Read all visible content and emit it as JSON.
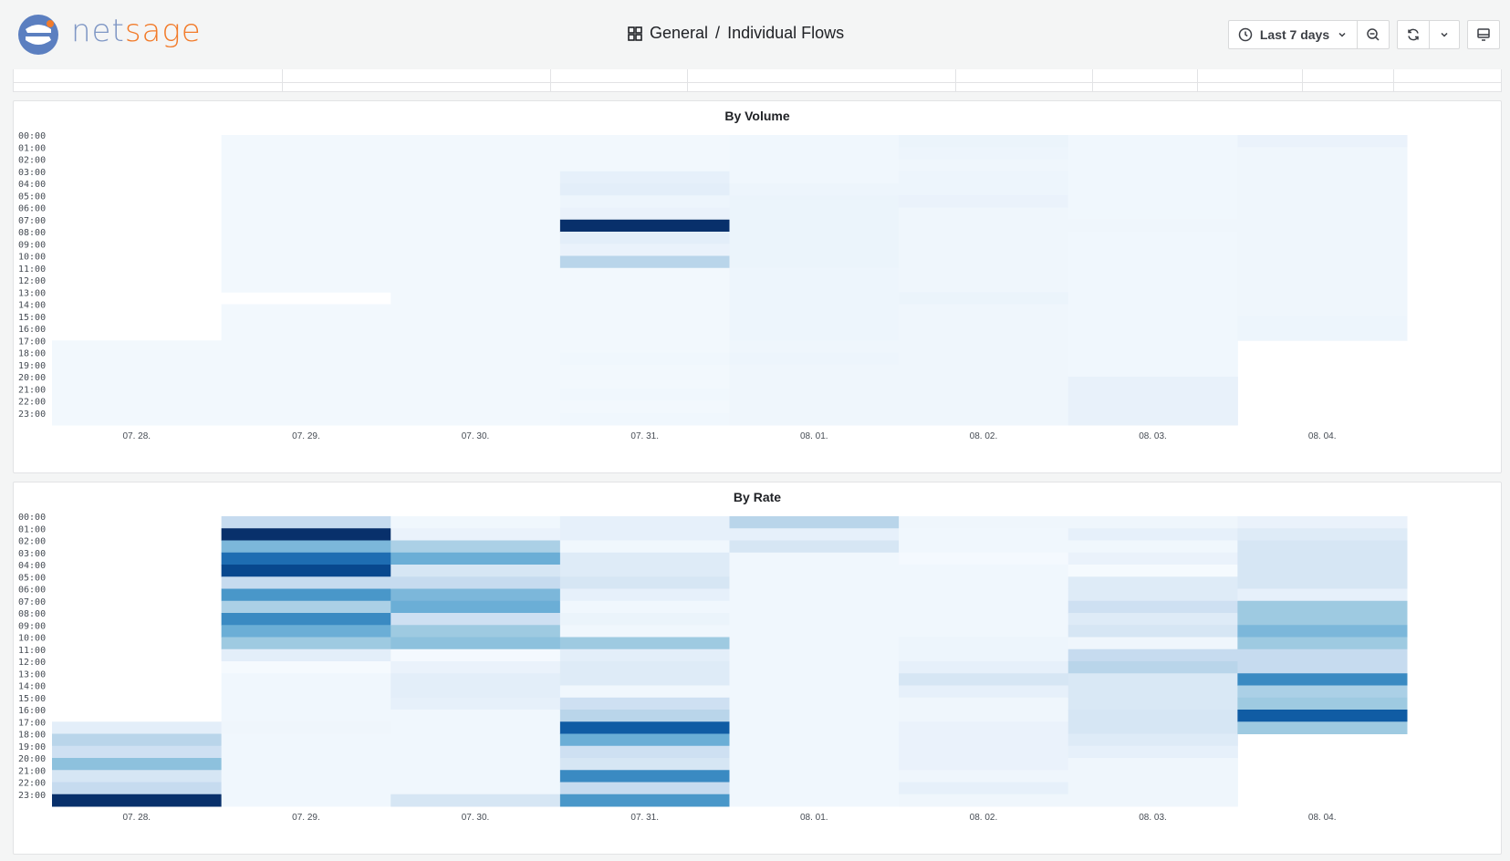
{
  "app": {
    "brand_part1": "net",
    "brand_part2": "sage",
    "dashboard_folder": "General",
    "separator": "/",
    "dashboard_name": "Individual Flows"
  },
  "toolbar": {
    "time_range_label": "Last 7 days",
    "icons": [
      "clock-icon",
      "chevron-down-icon",
      "zoom-out-icon",
      "refresh-icon",
      "chevron-down-icon",
      "tv-mode-icon"
    ]
  },
  "colors": {
    "scale_low": "#f7fbff",
    "scale_high": "#08306b",
    "brand_blue": "#7f97c5",
    "brand_orange": "#f27b2a"
  },
  "chart_data": [
    {
      "type": "heatmap",
      "title": "By Volume",
      "x_categories": [
        "07. 28.",
        "07. 29.",
        "07. 30.",
        "07. 31.",
        "08. 01.",
        "08. 02.",
        "08. 03.",
        "08. 04."
      ],
      "y_categories": [
        "00:00",
        "01:00",
        "02:00",
        "03:00",
        "04:00",
        "05:00",
        "06:00",
        "07:00",
        "08:00",
        "09:00",
        "10:00",
        "11:00",
        "12:00",
        "13:00",
        "14:00",
        "15:00",
        "16:00",
        "17:00",
        "18:00",
        "19:00",
        "20:00",
        "21:00",
        "22:00",
        "23:00"
      ],
      "value_scale": "0-1 relative intensity",
      "values": [
        [
          null,
          null,
          null,
          null,
          null,
          null,
          null,
          null,
          null,
          null,
          null,
          null,
          null,
          null,
          null,
          null,
          null,
          0.03,
          0.03,
          0.03,
          0.03,
          0.03,
          0.03,
          0.03
        ],
        [
          0.03,
          0.03,
          0.03,
          0.03,
          0.03,
          0.03,
          0.03,
          0.03,
          0.03,
          0.03,
          0.03,
          0.03,
          0.03,
          null,
          0.03,
          0.03,
          0.03,
          0.03,
          0.03,
          0.03,
          0.03,
          0.03,
          0.03,
          0.03
        ],
        [
          0.03,
          0.03,
          0.03,
          0.03,
          0.03,
          0.03,
          0.03,
          0.03,
          0.03,
          0.03,
          0.03,
          0.03,
          0.03,
          0.03,
          0.03,
          0.03,
          0.03,
          0.03,
          0.03,
          0.03,
          0.03,
          0.03,
          0.03,
          0.03
        ],
        [
          0.03,
          0.03,
          0.03,
          0.1,
          0.12,
          0.06,
          0.08,
          1.0,
          0.12,
          0.08,
          0.35,
          0.03,
          0.03,
          0.03,
          0.03,
          0.03,
          0.03,
          0.03,
          0.04,
          0.03,
          0.03,
          0.04,
          0.03,
          0.04
        ],
        [
          0.04,
          0.04,
          0.04,
          0.04,
          0.06,
          0.07,
          0.07,
          0.07,
          0.07,
          0.07,
          0.07,
          0.06,
          0.06,
          0.06,
          0.06,
          0.06,
          0.06,
          0.05,
          0.06,
          0.05,
          0.05,
          0.05,
          0.05,
          0.05
        ],
        [
          0.07,
          0.06,
          0.05,
          0.06,
          0.06,
          0.08,
          0.05,
          0.05,
          0.05,
          0.05,
          0.05,
          0.05,
          0.05,
          0.07,
          0.05,
          0.05,
          0.05,
          0.05,
          0.05,
          0.05,
          0.05,
          0.05,
          0.05,
          0.05
        ],
        [
          0.04,
          0.04,
          0.04,
          0.04,
          0.04,
          0.04,
          0.04,
          0.05,
          0.04,
          0.04,
          0.04,
          0.04,
          0.04,
          0.04,
          0.04,
          0.04,
          0.04,
          0.04,
          0.04,
          0.04,
          0.09,
          0.09,
          0.09,
          0.09
        ],
        [
          0.08,
          0.05,
          0.05,
          0.05,
          0.05,
          0.05,
          0.05,
          0.05,
          0.05,
          0.05,
          0.05,
          0.05,
          0.05,
          0.05,
          0.05,
          0.06,
          0.06,
          null,
          null,
          null,
          null,
          null,
          null,
          null
        ]
      ]
    },
    {
      "type": "heatmap",
      "title": "By Rate",
      "x_categories": [
        "07. 28.",
        "07. 29.",
        "07. 30.",
        "07. 31.",
        "08. 01.",
        "08. 02.",
        "08. 03.",
        "08. 04."
      ],
      "y_categories": [
        "00:00",
        "01:00",
        "02:00",
        "03:00",
        "04:00",
        "05:00",
        "06:00",
        "07:00",
        "08:00",
        "09:00",
        "10:00",
        "11:00",
        "12:00",
        "13:00",
        "14:00",
        "15:00",
        "16:00",
        "17:00",
        "18:00",
        "19:00",
        "20:00",
        "21:00",
        "22:00",
        "23:00"
      ],
      "value_scale": "0-1 relative intensity",
      "values": [
        [
          null,
          null,
          null,
          null,
          null,
          null,
          null,
          null,
          null,
          null,
          null,
          null,
          null,
          null,
          null,
          null,
          null,
          0.12,
          0.35,
          0.25,
          0.5,
          0.2,
          0.3,
          1.0
        ],
        [
          0.3,
          1.0,
          0.55,
          0.85,
          0.95,
          0.3,
          0.7,
          0.4,
          0.75,
          0.6,
          0.45,
          0.12,
          0.01,
          0.04,
          0.04,
          0.04,
          0.04,
          0.05,
          0.04,
          0.04,
          0.04,
          0.04,
          0.04,
          0.04
        ],
        [
          0.04,
          0.08,
          0.4,
          0.6,
          0.2,
          0.3,
          0.55,
          0.6,
          0.25,
          0.45,
          0.5,
          0.02,
          0.08,
          0.12,
          0.12,
          0.1,
          0.04,
          0.04,
          0.04,
          0.04,
          0.04,
          0.04,
          0.04,
          0.2
        ],
        [
          0.1,
          0.1,
          0.04,
          0.15,
          0.15,
          0.2,
          0.1,
          0.04,
          0.07,
          0.04,
          0.45,
          0.12,
          0.15,
          0.15,
          0.04,
          0.25,
          0.35,
          0.9,
          0.6,
          0.25,
          0.2,
          0.75,
          0.3,
          0.7
        ],
        [
          0.35,
          0.1,
          0.2,
          0.04,
          0.04,
          0.04,
          0.04,
          0.04,
          0.04,
          0.04,
          0.04,
          0.04,
          0.04,
          0.04,
          0.04,
          0.04,
          0.04,
          0.04,
          0.04,
          0.04,
          0.04,
          0.04,
          0.04,
          0.04
        ],
        [
          0.05,
          0.04,
          0.04,
          0.02,
          0.04,
          0.04,
          0.04,
          0.04,
          0.04,
          0.04,
          0.06,
          0.06,
          0.1,
          0.2,
          0.1,
          0.05,
          0.05,
          0.08,
          0.08,
          0.08,
          0.08,
          0.05,
          0.1,
          0.05
        ],
        [
          0.05,
          0.1,
          0.04,
          0.08,
          0.01,
          0.15,
          0.15,
          0.25,
          0.15,
          0.2,
          0.05,
          0.3,
          0.35,
          0.18,
          0.18,
          0.18,
          0.2,
          0.2,
          0.15,
          0.1,
          0.05,
          0.05,
          0.05,
          0.05
        ],
        [
          0.08,
          0.15,
          0.2,
          0.2,
          0.2,
          0.2,
          0.1,
          0.45,
          0.45,
          0.55,
          0.45,
          0.3,
          0.3,
          0.75,
          0.4,
          0.45,
          0.9,
          0.45,
          null,
          null,
          null,
          null,
          null,
          null
        ]
      ]
    }
  ]
}
